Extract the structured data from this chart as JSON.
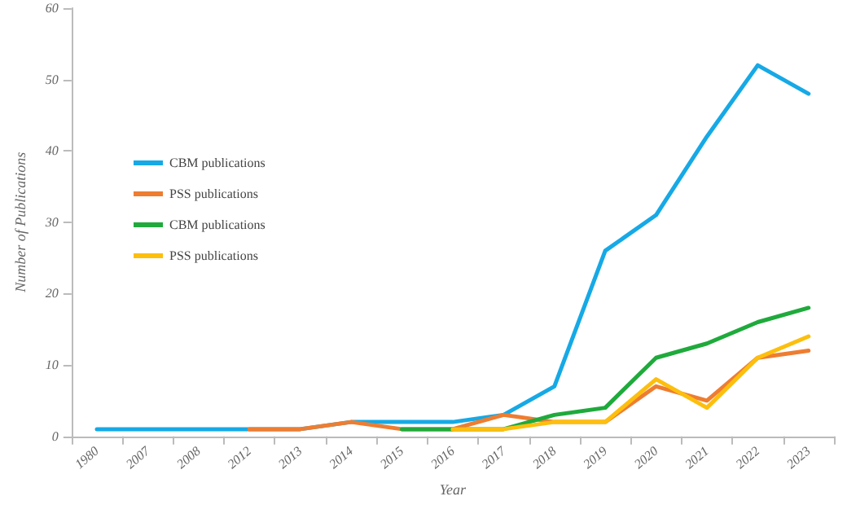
{
  "chart_data": {
    "type": "line",
    "xlabel": "Year",
    "ylabel": "Number of Publications",
    "categories": [
      "1980",
      "2007",
      "2008",
      "2012",
      "2013",
      "2014",
      "2015",
      "2016",
      "2017",
      "2018",
      "2019",
      "2020",
      "2021",
      "2022",
      "2023"
    ],
    "series": [
      {
        "name": "CBM publications",
        "color": "#16a9e6",
        "values": [
          1,
          1,
          1,
          1,
          1,
          2,
          2,
          2,
          3,
          7,
          26,
          31,
          42,
          52,
          48
        ]
      },
      {
        "name": "PSS publications",
        "color": "#ee7d31",
        "values": [
          null,
          null,
          null,
          1,
          1,
          2,
          1,
          1,
          3,
          2,
          2,
          7,
          5,
          11,
          12
        ]
      },
      {
        "name": "CBM publications",
        "color": "#1faa3c",
        "values": [
          null,
          null,
          null,
          null,
          null,
          null,
          1,
          1,
          1,
          3,
          4,
          11,
          13,
          16,
          18
        ]
      },
      {
        "name": "PSS publications",
        "color": "#fdbf0d",
        "values": [
          null,
          null,
          null,
          null,
          null,
          null,
          null,
          1,
          1,
          2,
          2,
          8,
          4,
          11,
          14
        ]
      }
    ],
    "ylim": [
      0,
      60
    ],
    "yticks": [
      0,
      10,
      20,
      30,
      40,
      50,
      60
    ],
    "grid": false,
    "legend": "left",
    "marker": "none",
    "line_style": "solid"
  }
}
